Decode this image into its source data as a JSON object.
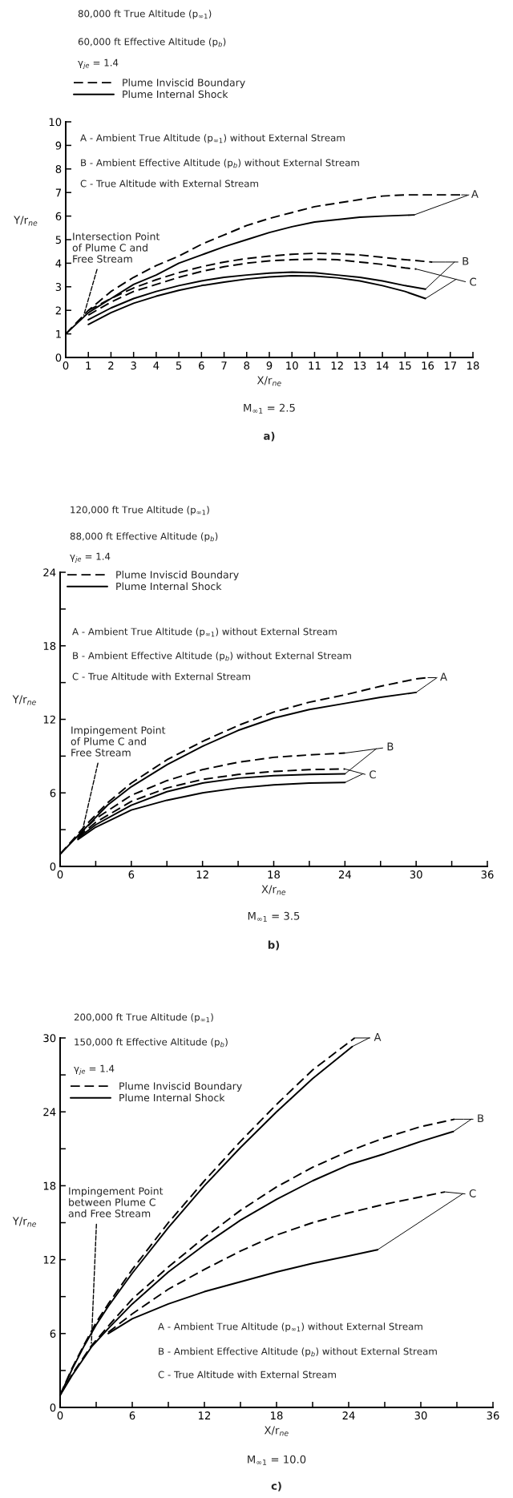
{
  "chart_data": [
    {
      "type": "line",
      "title": "80,000 ft True Altitude (p$_{∞1}$)",
      "subtitle": "60,000 ft Effective Altitude (p$_{b}$)",
      "xlabel": "X/r$_{ne}$",
      "ylabel": "Y/r$_{ne}$",
      "xlim": [
        0,
        18
      ],
      "ylim": [
        0,
        10
      ],
      "xticks": [
        0,
        1,
        2,
        3,
        4,
        5,
        6,
        7,
        8,
        9,
        10,
        11,
        12,
        13,
        14,
        15,
        16,
        17,
        18
      ],
      "yticks": [
        0,
        1,
        2,
        3,
        4,
        5,
        6,
        7,
        8,
        9,
        10
      ],
      "grid": false,
      "legend": "top left",
      "series": [
        {
          "name": "Plume Inviscid Boundary",
          "color": "#000000",
          "line_style": "dashed",
          "x": [
            0,
            1,
            2,
            3,
            4,
            5,
            6,
            7,
            8,
            9,
            10,
            11,
            12,
            13,
            14,
            15,
            16,
            17.5
          ],
          "values": [
            1,
            2.0,
            2.8,
            3.4,
            3.9,
            4.3,
            4.8,
            5.2,
            5.6,
            5.9,
            6.15,
            6.4,
            6.55,
            6.7,
            6.85,
            6.9,
            6.9,
            6.9
          ]
        },
        {
          "name": "Plume Internal Shock",
          "color": "#000000",
          "line_style": "solid",
          "x": [
            0,
            1,
            2,
            3,
            4,
            5,
            6,
            7,
            8,
            9,
            10,
            11,
            12,
            13,
            14,
            15.4
          ],
          "values": [
            1,
            1.9,
            2.5,
            3.1,
            3.5,
            4.0,
            4.35,
            4.7,
            5.0,
            5.3,
            5.55,
            5.75,
            5.85,
            5.95,
            6.0,
            6.05
          ]
        },
        {
          "color": "#000000",
          "line_style": "dashed",
          "x": [
            1,
            2,
            3,
            4,
            5,
            6,
            7,
            8,
            9,
            10,
            11,
            12,
            13,
            14,
            15,
            16.2
          ],
          "values": [
            2.0,
            2.5,
            2.95,
            3.3,
            3.6,
            3.85,
            4.05,
            4.2,
            4.3,
            4.38,
            4.42,
            4.4,
            4.35,
            4.25,
            4.15,
            4.05
          ]
        },
        {
          "color": "#000000",
          "line_style": "solid",
          "x": [
            1,
            2,
            3,
            4,
            5,
            6,
            7,
            8,
            9,
            10,
            11,
            12,
            13,
            14,
            15,
            15.9
          ],
          "values": [
            1.6,
            2.1,
            2.5,
            2.8,
            3.05,
            3.25,
            3.4,
            3.5,
            3.58,
            3.62,
            3.6,
            3.5,
            3.4,
            3.25,
            3.05,
            2.9
          ]
        },
        {
          "color": "#000000",
          "line_style": "dashed",
          "x": [
            1,
            2,
            3,
            4,
            5,
            6,
            7,
            8,
            9,
            10,
            11,
            12,
            13,
            14,
            15,
            15.5
          ],
          "values": [
            1.8,
            2.35,
            2.8,
            3.1,
            3.4,
            3.65,
            3.85,
            4.0,
            4.1,
            4.15,
            4.17,
            4.15,
            4.05,
            3.95,
            3.8,
            3.75
          ]
        },
        {
          "color": "#000000",
          "line_style": "solid",
          "x": [
            1,
            2,
            3,
            4,
            5,
            6,
            7,
            8,
            9,
            10,
            11,
            12,
            13,
            14,
            15,
            15.9
          ],
          "values": [
            1.4,
            1.9,
            2.3,
            2.6,
            2.85,
            3.05,
            3.2,
            3.33,
            3.42,
            3.47,
            3.45,
            3.38,
            3.25,
            3.05,
            2.8,
            2.5
          ]
        }
      ],
      "annotations": [
        "γ$_{je}$ = 1.4",
        "A - Ambient True Altitude (p$_{∞1}$) without External Stream",
        "B - Ambient Effective Altitude (p$_{b}$) without External Stream",
        "C - True Altitude with External Stream",
        "M$_{∞1}$ = 2.5",
        "a)",
        {
          "text": "Intersection Point\nof Plume C and\nFree Stream",
          "x": 0.8,
          "y": 1.8
        },
        {
          "text": "A",
          "x": 17.5,
          "y": 6.9
        },
        {
          "text": "B",
          "x": 16.2,
          "y": 4.05
        },
        {
          "text": "C",
          "x": 15.5,
          "y": 3.75
        }
      ]
    },
    {
      "type": "line",
      "title": "120,000 ft True Altitude (p$_{∞1}$)",
      "subtitle": "88,000 ft Effective Altitude (p$_{b}$)",
      "xlabel": "X/r$_{ne}$",
      "ylabel": "Y/r$_{ne}$",
      "xlim": [
        0,
        36
      ],
      "ylim": [
        0,
        24
      ],
      "xticks": [
        0,
        {
          "value": 3,
          "label": null
        },
        6,
        {
          "value": 9,
          "label": null
        },
        12,
        {
          "value": 15,
          "label": null
        },
        18,
        {
          "value": 21,
          "label": null
        },
        24,
        {
          "value": 27,
          "label": null
        },
        30,
        {
          "value": 33,
          "label": null
        },
        36
      ],
      "yticks": [
        0,
        {
          "value": 3,
          "label": null
        },
        6,
        {
          "value": 9,
          "label": null
        },
        12,
        {
          "value": 15,
          "label": null
        },
        18,
        {
          "value": 21,
          "label": null
        },
        24
      ],
      "grid": false,
      "legend": "top left",
      "series": [
        {
          "name": "Plume Inviscid Boundary",
          "color": "#000000",
          "line_style": "dashed",
          "x": [
            0,
            2,
            4,
            6,
            9,
            12,
            15,
            18,
            21,
            24,
            27,
            30,
            31
          ],
          "values": [
            1,
            3.2,
            5.2,
            6.8,
            8.7,
            10.2,
            11.5,
            12.6,
            13.4,
            14.0,
            14.7,
            15.3,
            15.4
          ]
        },
        {
          "name": "Plume Internal Shock",
          "color": "#000000",
          "line_style": "solid",
          "x": [
            0,
            2,
            4,
            6,
            9,
            12,
            15,
            18,
            21,
            24,
            27,
            30
          ],
          "values": [
            1,
            3.0,
            5.0,
            6.5,
            8.3,
            9.8,
            11.1,
            12.1,
            12.8,
            13.3,
            13.8,
            14.2
          ]
        },
        {
          "color": "#000000",
          "line_style": "dashed",
          "x": [
            1.5,
            3,
            6,
            9,
            12,
            15,
            18,
            21,
            24
          ],
          "values": [
            2.5,
            3.9,
            5.8,
            7.0,
            7.9,
            8.5,
            8.9,
            9.1,
            9.25
          ]
        },
        {
          "color": "#000000",
          "line_style": "solid",
          "x": [
            1.5,
            3,
            6,
            9,
            12,
            15,
            18,
            21,
            24
          ],
          "values": [
            2.3,
            3.4,
            5.0,
            6.1,
            6.8,
            7.2,
            7.4,
            7.5,
            7.55
          ]
        },
        {
          "color": "#000000",
          "line_style": "dashed",
          "x": [
            1.5,
            3,
            6,
            9,
            12,
            15,
            18,
            21,
            24
          ],
          "values": [
            2.4,
            3.6,
            5.3,
            6.4,
            7.1,
            7.5,
            7.75,
            7.9,
            7.95
          ]
        },
        {
          "color": "#000000",
          "line_style": "solid",
          "x": [
            1.5,
            3,
            6,
            9,
            12,
            15,
            18,
            21,
            24
          ],
          "values": [
            2.2,
            3.2,
            4.6,
            5.4,
            6.0,
            6.4,
            6.65,
            6.8,
            6.85
          ]
        }
      ],
      "annotations": [
        "γ$_{je}$ = 1.4",
        "A - Ambient True Altitude (p$_{∞1}$) without External Stream",
        "B - Ambient Effective Altitude (p$_{b}$) without External Stream",
        "C - True Altitude with External Stream",
        "M$_{∞1}$ = 3.5",
        "b)",
        {
          "text": "Impingement Point\nof Plume C and\nFree Stream",
          "x": 1.8,
          "y": 2.6
        },
        {
          "text": "A",
          "x": 31,
          "y": 15.4
        },
        {
          "text": "B",
          "x": 24,
          "y": 9.25
        },
        {
          "text": "C",
          "x": 24,
          "y": 7.95
        }
      ]
    },
    {
      "type": "line",
      "title": "200,000 ft True Altitude (p$_{∞1}$)",
      "subtitle": "150,000 ft Effective Altitude (p$_{b}$)",
      "xlabel": "X/r$_{ne}$",
      "ylabel": "Y/r$_{ne}$",
      "xlim": [
        0,
        36
      ],
      "ylim": [
        0,
        30
      ],
      "xticks": [
        0,
        {
          "value": 3,
          "label": null
        },
        6,
        {
          "value": 9,
          "label": null
        },
        12,
        {
          "value": 15,
          "label": null
        },
        18,
        {
          "value": 21,
          "label": null
        },
        24,
        {
          "value": 27,
          "label": null
        },
        30,
        {
          "value": 33,
          "label": null
        },
        36
      ],
      "yticks": [
        0,
        {
          "value": 3,
          "label": null
        },
        6,
        {
          "value": 9,
          "label": null
        },
        12,
        {
          "value": 15,
          "label": null
        },
        18,
        {
          "value": 21,
          "label": null
        },
        24,
        {
          "value": 27,
          "label": null
        },
        30
      ],
      "grid": false,
      "legend": "top left",
      "series": [
        {
          "name": "Plume Inviscid Boundary",
          "color": "#000000",
          "line_style": "dashed",
          "x": [
            0,
            1,
            2,
            3,
            4,
            6,
            9,
            12,
            15,
            18,
            21,
            24.5
          ],
          "values": [
            1,
            3.2,
            5.1,
            6.9,
            8.4,
            11.2,
            15.0,
            18.4,
            21.6,
            24.6,
            27.4,
            30
          ]
        },
        {
          "name": "Plume Internal Shock",
          "color": "#000000",
          "line_style": "solid",
          "x": [
            0,
            1,
            2,
            3,
            4,
            6,
            9,
            12,
            15,
            18,
            21,
            24.3
          ],
          "values": [
            1,
            3.1,
            5.0,
            6.7,
            8.2,
            10.9,
            14.6,
            18.0,
            21.1,
            24.0,
            26.7,
            29.3
          ]
        },
        {
          "color": "#000000",
          "line_style": "dashed",
          "x": [
            0,
            1,
            2.6,
            4,
            6,
            9,
            12,
            15,
            18,
            21,
            24,
            27,
            30,
            32.8
          ],
          "values": [
            1,
            2.7,
            5.0,
            6.6,
            8.8,
            11.4,
            13.8,
            16.0,
            17.9,
            19.5,
            20.8,
            21.9,
            22.8,
            23.4
          ]
        },
        {
          "color": "#000000",
          "line_style": "solid",
          "x": [
            0,
            1,
            2.6,
            4,
            6,
            9,
            12,
            15,
            18,
            21,
            24,
            27,
            30,
            32.7
          ],
          "values": [
            1,
            2.6,
            4.9,
            6.4,
            8.4,
            11.0,
            13.2,
            15.2,
            16.9,
            18.4,
            19.7,
            20.6,
            21.6,
            22.4
          ]
        },
        {
          "color": "#000000",
          "line_style": "dashed",
          "x": [
            4,
            6,
            9,
            12,
            15,
            18,
            21,
            24,
            27,
            30,
            32
          ],
          "values": [
            6.1,
            7.6,
            9.6,
            11.2,
            12.7,
            14.0,
            15.0,
            15.8,
            16.5,
            17.1,
            17.5
          ]
        },
        {
          "color": "#000000",
          "line_style": "solid",
          "x": [
            4,
            6,
            9,
            12,
            15,
            18,
            21,
            24,
            26.4
          ],
          "values": [
            6.0,
            7.2,
            8.4,
            9.4,
            10.2,
            11.0,
            11.7,
            12.3,
            12.8
          ]
        }
      ],
      "annotations": [
        "γ$_{je}$ = 1.4",
        "A - Ambient True Altitude (p$_{∞1}$) without External Stream",
        "B - Ambient Effective Altitude (p$_{b}$) without External Stream",
        "C - True Altitude with External Stream",
        "M$_{∞1}$ = 10.0",
        "c)",
        {
          "text": "Impingement Point\nbetween Plume C\nand Free Stream",
          "x": 2.6,
          "y": 5.2
        },
        {
          "text": "A",
          "x": 24.5,
          "y": 30
        },
        {
          "text": "B",
          "x": 32.8,
          "y": 23.4
        },
        {
          "text": "C",
          "x": 32,
          "y": 17.5
        }
      ]
    }
  ]
}
